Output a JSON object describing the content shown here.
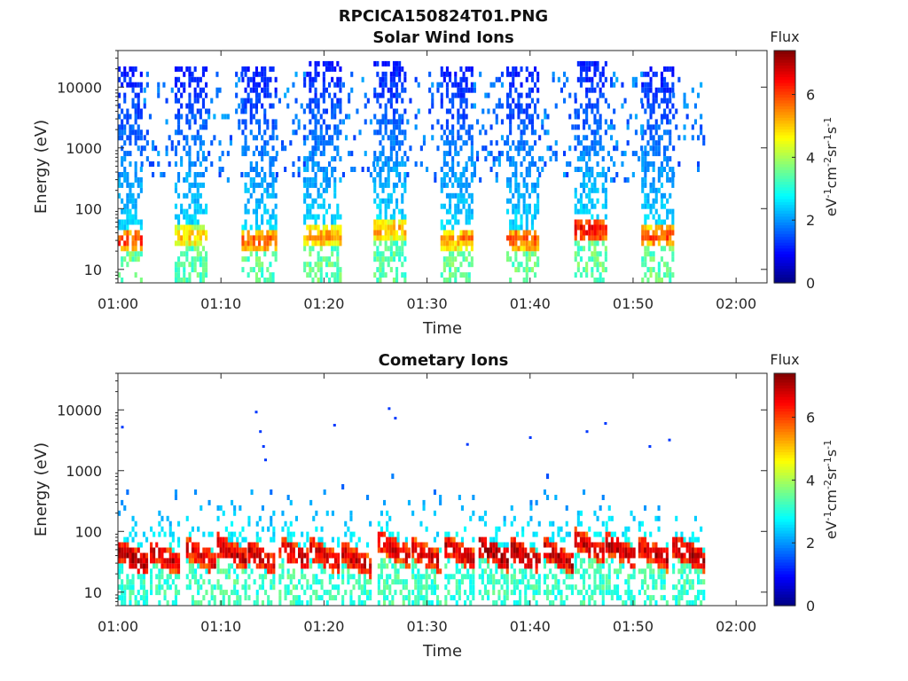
{
  "figure_title": "RPCICA150824T01.PNG",
  "chart_data": [
    {
      "type": "heatmap",
      "title": "Solar Wind Ions",
      "xlabel": "Time",
      "ylabel": "Energy (eV)",
      "x_ticks": [
        "01:00",
        "01:10",
        "01:20",
        "01:30",
        "01:40",
        "01:50",
        "02:00"
      ],
      "xlim_minutes": [
        0,
        63
      ],
      "y_scale": "log",
      "y_ticks": [
        "10",
        "100",
        "1000",
        "10000"
      ],
      "ylim": [
        6,
        40000
      ],
      "colorbar": {
        "title": "Flux",
        "unit_label": "eV-1cm-2sr-1s-1",
        "ticks": [
          "0",
          "2",
          "4",
          "6"
        ],
        "range": [
          0,
          7.4
        ],
        "colormap": "jet"
      },
      "sweeps": [
        {
          "start_min": 0.0,
          "end_min": 2.2,
          "peak_energy_eV": 30,
          "peak_flux": 6.2,
          "max_energy_eV": 20000,
          "low_energy_flux": 3.4
        },
        {
          "start_min": 5.5,
          "end_min": 8.7,
          "peak_energy_eV": 35,
          "peak_flux": 5.2,
          "max_energy_eV": 20000,
          "low_energy_flux": 3.2
        },
        {
          "start_min": 12.0,
          "end_min": 15.3,
          "peak_energy_eV": 30,
          "peak_flux": 6.0,
          "max_energy_eV": 20000,
          "low_energy_flux": 3.2
        },
        {
          "start_min": 18.0,
          "end_min": 21.5,
          "peak_energy_eV": 35,
          "peak_flux": 5.5,
          "max_energy_eV": 25000,
          "low_energy_flux": 3.3
        },
        {
          "start_min": 24.8,
          "end_min": 28.0,
          "peak_energy_eV": 45,
          "peak_flux": 5.4,
          "max_energy_eV": 25000,
          "low_energy_flux": 3.2
        },
        {
          "start_min": 31.3,
          "end_min": 34.5,
          "peak_energy_eV": 32,
          "peak_flux": 5.6,
          "max_energy_eV": 20000,
          "low_energy_flux": 3.3
        },
        {
          "start_min": 37.7,
          "end_min": 40.8,
          "peak_energy_eV": 32,
          "peak_flux": 6.0,
          "max_energy_eV": 20000,
          "low_energy_flux": 3.3
        },
        {
          "start_min": 44.3,
          "end_min": 47.5,
          "peak_energy_eV": 45,
          "peak_flux": 6.6,
          "max_energy_eV": 25000,
          "low_energy_flux": 3.3
        },
        {
          "start_min": 50.8,
          "end_min": 53.8,
          "peak_energy_eV": 35,
          "peak_flux": 6.0,
          "max_energy_eV": 20000,
          "low_energy_flux": 3.3
        }
      ],
      "background_spans": [
        [
          2.2,
          5.5
        ],
        [
          8.7,
          12.0
        ],
        [
          15.3,
          18.0
        ],
        [
          21.5,
          24.8
        ],
        [
          28.0,
          31.3
        ],
        [
          34.5,
          37.7
        ],
        [
          40.8,
          44.3
        ],
        [
          47.5,
          50.8
        ],
        [
          53.8,
          57.0
        ]
      ]
    },
    {
      "type": "heatmap",
      "title": "Cometary Ions",
      "xlabel": "Time",
      "ylabel": "Energy (eV)",
      "x_ticks": [
        "01:00",
        "01:10",
        "01:20",
        "01:30",
        "01:40",
        "01:50",
        "02:00"
      ],
      "xlim_minutes": [
        0,
        63
      ],
      "y_scale": "log",
      "y_ticks": [
        "10",
        "100",
        "1000",
        "10000"
      ],
      "ylim": [
        6,
        40000
      ],
      "colorbar": {
        "title": "Flux",
        "unit_label": "eV-1cm-2sr-1s-1",
        "ticks": [
          "0",
          "2",
          "4",
          "6"
        ],
        "range": [
          0,
          7.4
        ],
        "colormap": "jet"
      },
      "sweeps": [
        {
          "start_min": 0.0,
          "end_min": 2.9,
          "peak_energy_eV": 32,
          "peak_flux": 7.2,
          "max_energy_eV": 800,
          "low_energy_flux": 3.0
        },
        {
          "start_min": 3.1,
          "end_min": 6.0,
          "peak_energy_eV": 32,
          "peak_flux": 7.0,
          "max_energy_eV": 800,
          "low_energy_flux": 3.0
        },
        {
          "start_min": 6.6,
          "end_min": 9.3,
          "peak_energy_eV": 35,
          "peak_flux": 6.8,
          "max_energy_eV": 800,
          "low_energy_flux": 3.0
        },
        {
          "start_min": 9.6,
          "end_min": 12.3,
          "peak_energy_eV": 40,
          "peak_flux": 7.0,
          "max_energy_eV": 1200,
          "low_energy_flux": 3.1
        },
        {
          "start_min": 12.6,
          "end_min": 15.2,
          "peak_energy_eV": 32,
          "peak_flux": 7.0,
          "max_energy_eV": 1000,
          "low_energy_flux": 3.0
        },
        {
          "start_min": 15.6,
          "end_min": 18.4,
          "peak_energy_eV": 38,
          "peak_flux": 7.1,
          "max_energy_eV": 1200,
          "low_energy_flux": 3.1
        },
        {
          "start_min": 18.6,
          "end_min": 21.3,
          "peak_energy_eV": 35,
          "peak_flux": 6.9,
          "max_energy_eV": 1000,
          "low_energy_flux": 3.0
        },
        {
          "start_min": 21.7,
          "end_min": 24.5,
          "peak_energy_eV": 30,
          "peak_flux": 7.0,
          "max_energy_eV": 900,
          "low_energy_flux": 3.0
        },
        {
          "start_min": 25.2,
          "end_min": 28.2,
          "peak_energy_eV": 45,
          "peak_flux": 6.9,
          "max_energy_eV": 1200,
          "low_energy_flux": 3.1
        },
        {
          "start_min": 28.5,
          "end_min": 31.4,
          "peak_energy_eV": 35,
          "peak_flux": 7.0,
          "max_energy_eV": 1000,
          "low_energy_flux": 3.0
        },
        {
          "start_min": 31.7,
          "end_min": 34.6,
          "peak_energy_eV": 38,
          "peak_flux": 7.0,
          "max_energy_eV": 900,
          "low_energy_flux": 3.0
        },
        {
          "start_min": 35.0,
          "end_min": 37.8,
          "peak_energy_eV": 38,
          "peak_flux": 7.3,
          "max_energy_eV": 900,
          "low_energy_flux": 3.0
        },
        {
          "start_min": 38.1,
          "end_min": 40.9,
          "peak_energy_eV": 35,
          "peak_flux": 7.2,
          "max_energy_eV": 900,
          "low_energy_flux": 3.0
        },
        {
          "start_min": 41.3,
          "end_min": 44.0,
          "peak_energy_eV": 35,
          "peak_flux": 7.1,
          "max_energy_eV": 1000,
          "low_energy_flux": 3.0
        },
        {
          "start_min": 44.3,
          "end_min": 47.0,
          "peak_energy_eV": 50,
          "peak_flux": 7.0,
          "max_energy_eV": 1200,
          "low_energy_flux": 3.1
        },
        {
          "start_min": 47.3,
          "end_min": 50.2,
          "peak_energy_eV": 42,
          "peak_flux": 7.1,
          "max_energy_eV": 1000,
          "low_energy_flux": 3.0
        },
        {
          "start_min": 50.5,
          "end_min": 53.3,
          "peak_energy_eV": 38,
          "peak_flux": 7.0,
          "max_energy_eV": 1000,
          "low_energy_flux": 3.0
        },
        {
          "start_min": 53.8,
          "end_min": 56.8,
          "peak_energy_eV": 38,
          "peak_flux": 7.2,
          "max_energy_eV": 1000,
          "low_energy_flux": 3.0
        }
      ],
      "isolated_points": [
        {
          "t_min": 0.3,
          "energy_eV": 5200
        },
        {
          "t_min": 13.3,
          "energy_eV": 9200
        },
        {
          "t_min": 13.7,
          "energy_eV": 4400
        },
        {
          "t_min": 14.0,
          "energy_eV": 2500
        },
        {
          "t_min": 14.2,
          "energy_eV": 1500
        },
        {
          "t_min": 20.9,
          "energy_eV": 5600
        },
        {
          "t_min": 26.2,
          "energy_eV": 10500
        },
        {
          "t_min": 26.8,
          "energy_eV": 7300
        },
        {
          "t_min": 33.8,
          "energy_eV": 2700
        },
        {
          "t_min": 39.9,
          "energy_eV": 3500
        },
        {
          "t_min": 45.4,
          "energy_eV": 4400
        },
        {
          "t_min": 47.2,
          "energy_eV": 6000
        },
        {
          "t_min": 51.5,
          "energy_eV": 2500
        },
        {
          "t_min": 53.4,
          "energy_eV": 3200
        }
      ]
    }
  ]
}
